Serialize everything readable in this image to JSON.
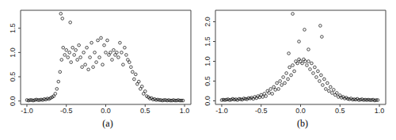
{
  "chart_data": [
    {
      "type": "scatter",
      "title": "(a)",
      "marker": "open circle",
      "color": "#000000",
      "x": [
        -1.0,
        -0.98,
        -0.96,
        -0.94,
        -0.92,
        -0.9,
        -0.88,
        -0.86,
        -0.84,
        -0.82,
        -0.8,
        -0.78,
        -0.76,
        -0.74,
        -0.72,
        -0.7,
        -0.68,
        -0.66,
        -0.64,
        -0.62,
        -0.6,
        -0.58,
        -0.56,
        -0.54,
        -0.52,
        -0.5,
        -0.48,
        -0.46,
        -0.44,
        -0.42,
        -0.4,
        -0.38,
        -0.36,
        -0.34,
        -0.32,
        -0.3,
        -0.28,
        -0.26,
        -0.24,
        -0.22,
        -0.2,
        -0.18,
        -0.16,
        -0.14,
        -0.12,
        -0.1,
        -0.08,
        -0.06,
        -0.04,
        -0.02,
        0,
        0.02,
        0.04,
        0.06,
        0.08,
        0.1,
        0.12,
        0.14,
        0.16,
        0.18,
        0.2,
        0.22,
        0.24,
        0.26,
        0.28,
        0.3,
        0.32,
        0.34,
        0.36,
        0.38,
        0.4,
        0.42,
        0.44,
        0.46,
        0.48,
        0.5,
        0.52,
        0.54,
        0.56,
        0.58,
        0.6,
        0.62,
        0.64,
        0.66,
        0.68,
        0.7,
        0.72,
        0.74,
        0.76,
        0.78,
        0.8,
        0.82,
        0.84,
        0.86,
        0.88,
        0.9,
        0.92,
        0.94,
        0.96,
        0.98,
        -0.57,
        -0.55,
        -0.45
      ],
      "values": [
        0.02,
        0.01,
        0.02,
        0.02,
        0.01,
        0.02,
        0.03,
        0.02,
        0.02,
        0.03,
        0.02,
        0.04,
        0.03,
        0.05,
        0.04,
        0.06,
        0.08,
        0.1,
        0.15,
        0.25,
        0.4,
        0.6,
        0.85,
        1.1,
        0.95,
        1.05,
        0.9,
        1.0,
        0.8,
        1.1,
        0.95,
        1.05,
        0.85,
        1.15,
        0.9,
        0.7,
        1.0,
        0.75,
        1.1,
        0.65,
        0.9,
        1.2,
        0.7,
        1.0,
        0.8,
        1.25,
        0.9,
        1.3,
        0.75,
        1.15,
        1.0,
        1.25,
        0.95,
        1.0,
        0.85,
        1.05,
        0.95,
        1.0,
        0.9,
        1.2,
        1.0,
        0.75,
        1.1,
        0.95,
        0.85,
        0.8,
        0.7,
        0.6,
        0.45,
        0.55,
        0.35,
        0.4,
        0.25,
        0.3,
        0.15,
        0.2,
        0.1,
        0.08,
        0.05,
        0.06,
        0.03,
        0.04,
        0.02,
        0.03,
        0.02,
        0.02,
        0.01,
        0.02,
        0.02,
        0.01,
        0.02,
        0.01,
        0.01,
        0.02,
        0.01,
        0.01,
        0.02,
        0.01,
        0.01,
        0.01,
        1.8,
        1.7,
        1.62
      ],
      "xlim": [
        -1.08,
        1.08
      ],
      "ylim": [
        -0.07,
        1.87
      ],
      "xticks": [
        {
          "value": -1,
          "label": "-1.0"
        },
        {
          "value": -0.5,
          "label": "-0.5"
        },
        {
          "value": 0,
          "label": "0.0"
        },
        {
          "value": 0.5,
          "label": "0.5"
        },
        {
          "value": 1,
          "label": "1.0"
        }
      ],
      "yticks": [
        {
          "value": 0,
          "label": "0.0"
        },
        0.5,
        {
          "value": 1,
          "label": "1.0"
        },
        1.5
      ]
    },
    {
      "type": "scatter",
      "title": "(b)",
      "marker": "open circle",
      "color": "#000000",
      "x": [
        -1.0,
        -0.98,
        -0.96,
        -0.94,
        -0.92,
        -0.9,
        -0.88,
        -0.86,
        -0.84,
        -0.82,
        -0.8,
        -0.78,
        -0.76,
        -0.74,
        -0.72,
        -0.7,
        -0.68,
        -0.66,
        -0.64,
        -0.62,
        -0.6,
        -0.58,
        -0.56,
        -0.54,
        -0.52,
        -0.5,
        -0.48,
        -0.46,
        -0.44,
        -0.42,
        -0.4,
        -0.38,
        -0.36,
        -0.34,
        -0.32,
        -0.3,
        -0.28,
        -0.26,
        -0.24,
        -0.22,
        -0.2,
        -0.18,
        -0.16,
        -0.14,
        -0.12,
        -0.1,
        -0.08,
        -0.06,
        -0.04,
        -0.02,
        0,
        0.02,
        0.04,
        0.06,
        0.08,
        0.1,
        0.12,
        0.14,
        0.16,
        0.18,
        0.2,
        0.22,
        0.24,
        0.26,
        0.28,
        0.3,
        0.32,
        0.34,
        0.36,
        0.38,
        0.4,
        0.42,
        0.44,
        0.46,
        0.48,
        0.5,
        0.52,
        0.54,
        0.56,
        0.58,
        0.6,
        0.62,
        0.64,
        0.66,
        0.68,
        0.7,
        0.72,
        0.74,
        0.76,
        0.78,
        0.8,
        0.82,
        0.84,
        0.86,
        0.88,
        0.9,
        0.92,
        0.94,
        0.96,
        0.98,
        -0.1,
        0.25,
        0.27,
        0.05,
        -0.02,
        0.1,
        -0.15
      ],
      "values": [
        0.02,
        0.03,
        0.02,
        0.03,
        0.04,
        0.02,
        0.03,
        0.05,
        0.03,
        0.04,
        0.02,
        0.05,
        0.04,
        0.03,
        0.06,
        0.05,
        0.04,
        0.07,
        0.06,
        0.08,
        0.05,
        0.1,
        0.07,
        0.12,
        0.09,
        0.15,
        0.1,
        0.18,
        0.12,
        0.25,
        0.2,
        0.3,
        0.18,
        0.35,
        0.28,
        0.45,
        0.3,
        0.5,
        0.4,
        0.6,
        0.45,
        0.7,
        0.55,
        0.85,
        0.65,
        0.9,
        0.75,
        1.0,
        0.95,
        1.05,
        1.0,
        0.95,
        1.05,
        1.0,
        0.9,
        1.0,
        0.8,
        0.95,
        0.7,
        0.85,
        0.6,
        0.75,
        0.5,
        0.65,
        0.4,
        0.55,
        0.3,
        0.45,
        0.25,
        0.35,
        0.2,
        0.28,
        0.15,
        0.2,
        0.1,
        0.14,
        0.08,
        0.1,
        0.06,
        0.08,
        0.05,
        0.04,
        0.06,
        0.03,
        0.04,
        0.03,
        0.05,
        0.02,
        0.03,
        0.04,
        0.02,
        0.03,
        0.02,
        0.03,
        0.02,
        0.02,
        0.03,
        0.01,
        0.02,
        0.02,
        2.2,
        1.9,
        1.62,
        1.8,
        1.5,
        1.3,
        1.2
      ],
      "xlim": [
        -1.08,
        1.08
      ],
      "ylim": [
        -0.09,
        2.29
      ],
      "xticks": [
        {
          "value": -1,
          "label": "-1.0"
        },
        {
          "value": -0.5,
          "label": "-0.5"
        },
        {
          "value": 0,
          "label": "0.0"
        },
        {
          "value": 0.5,
          "label": "0.5"
        },
        {
          "value": 1,
          "label": "1.0"
        }
      ],
      "yticks": [
        {
          "value": 0,
          "label": "0.0"
        },
        0.5,
        {
          "value": 1,
          "label": "1.0"
        },
        1.5,
        {
          "value": 2,
          "label": "2.0"
        }
      ]
    }
  ]
}
